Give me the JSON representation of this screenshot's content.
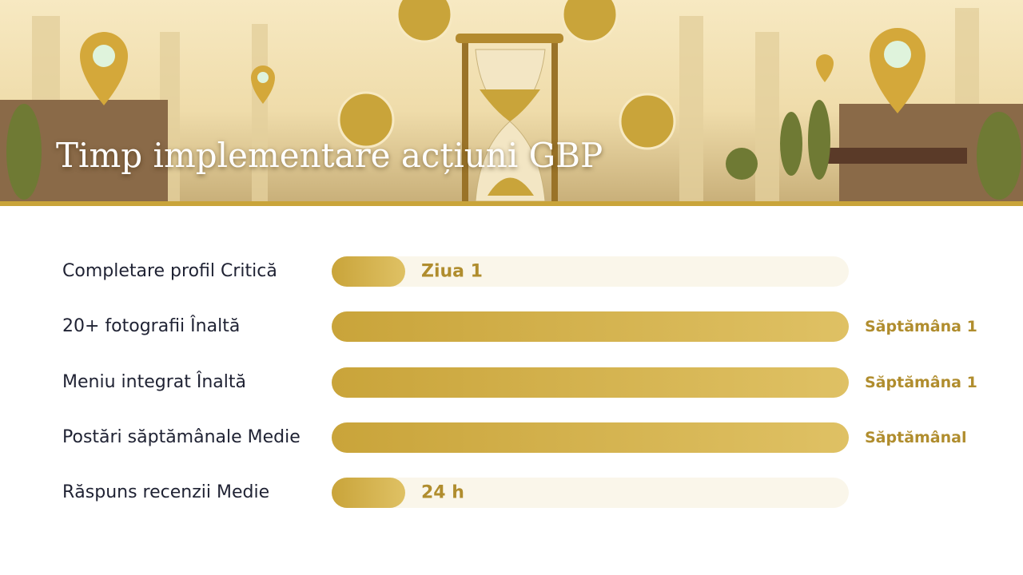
{
  "header": {
    "title": "Timp implementare acțiuni GBP"
  },
  "rows": [
    {
      "label": "Completare profil Critică",
      "duration": "Ziua 1"
    },
    {
      "label": "20+ fotografii Înaltă",
      "duration": "Săptămâna 1"
    },
    {
      "label": "Meniu integrat Înaltă",
      "duration": "Săptămâna 1"
    },
    {
      "label": "Postări săptămânale Medie",
      "duration": "Săptămânal"
    },
    {
      "label": "Răspuns recenzii Medie",
      "duration": "24 h"
    }
  ]
}
